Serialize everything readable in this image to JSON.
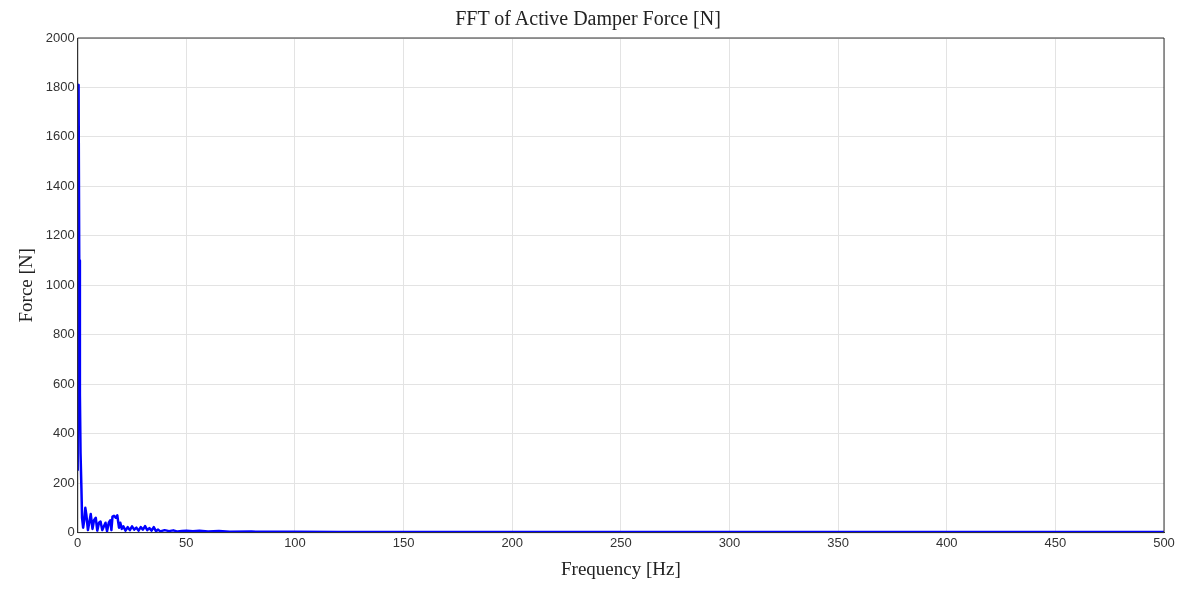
{
  "chart_data": {
    "type": "line",
    "title": "FFT of Active Damper Force [N]",
    "xlabel": "Frequency [Hz]",
    "ylabel": "Force [N]",
    "xlim": [
      0,
      500
    ],
    "xticks": [
      0,
      50,
      100,
      150,
      200,
      250,
      300,
      350,
      400,
      450,
      500
    ],
    "ylim": [
      0,
      2000
    ],
    "yticks": [
      0,
      200,
      400,
      600,
      800,
      1000,
      1200,
      1400,
      1600,
      1800,
      2000
    ],
    "grid": true,
    "legend": false,
    "marker": "none",
    "line_style": "solid",
    "x": [
      0,
      0.2,
      0.4,
      0.7,
      1,
      1.3,
      1.7,
      2,
      2.5,
      3,
      3.5,
      4,
      4.7,
      5.3,
      6,
      6.8,
      7.5,
      8.3,
      9,
      9.8,
      10.5,
      11.3,
      12,
      12.8,
      13.5,
      14.3,
      15,
      15.5,
      16,
      16.7,
      17.5,
      18.2,
      19,
      19.6,
      20.3,
      21,
      22,
      23,
      24,
      25,
      26,
      27,
      28,
      29,
      30,
      31,
      32,
      33,
      34,
      35,
      36,
      37,
      38,
      40,
      42,
      44,
      46,
      48,
      50,
      53,
      56,
      60,
      65,
      70,
      80,
      90,
      100,
      120,
      150,
      200,
      250,
      300,
      350,
      400,
      450,
      500
    ],
    "series": [
      {
        "color": "#0000ff",
        "values": [
          250,
          1810,
          1790,
          1100,
          560,
          320,
          180,
          60,
          20,
          50,
          100,
          70,
          10,
          40,
          75,
          15,
          50,
          60,
          8,
          40,
          45,
          10,
          25,
          40,
          5,
          40,
          50,
          10,
          65,
          68,
          60,
          70,
          20,
          40,
          15,
          25,
          8,
          22,
          10,
          25,
          12,
          20,
          8,
          22,
          12,
          26,
          10,
          18,
          8,
          22,
          6,
          12,
          5,
          10,
          6,
          9,
          4,
          6,
          8,
          5,
          7,
          4,
          6,
          3,
          4,
          3,
          3,
          2,
          2,
          2,
          2,
          2,
          2,
          2,
          2,
          2
        ]
      }
    ]
  }
}
